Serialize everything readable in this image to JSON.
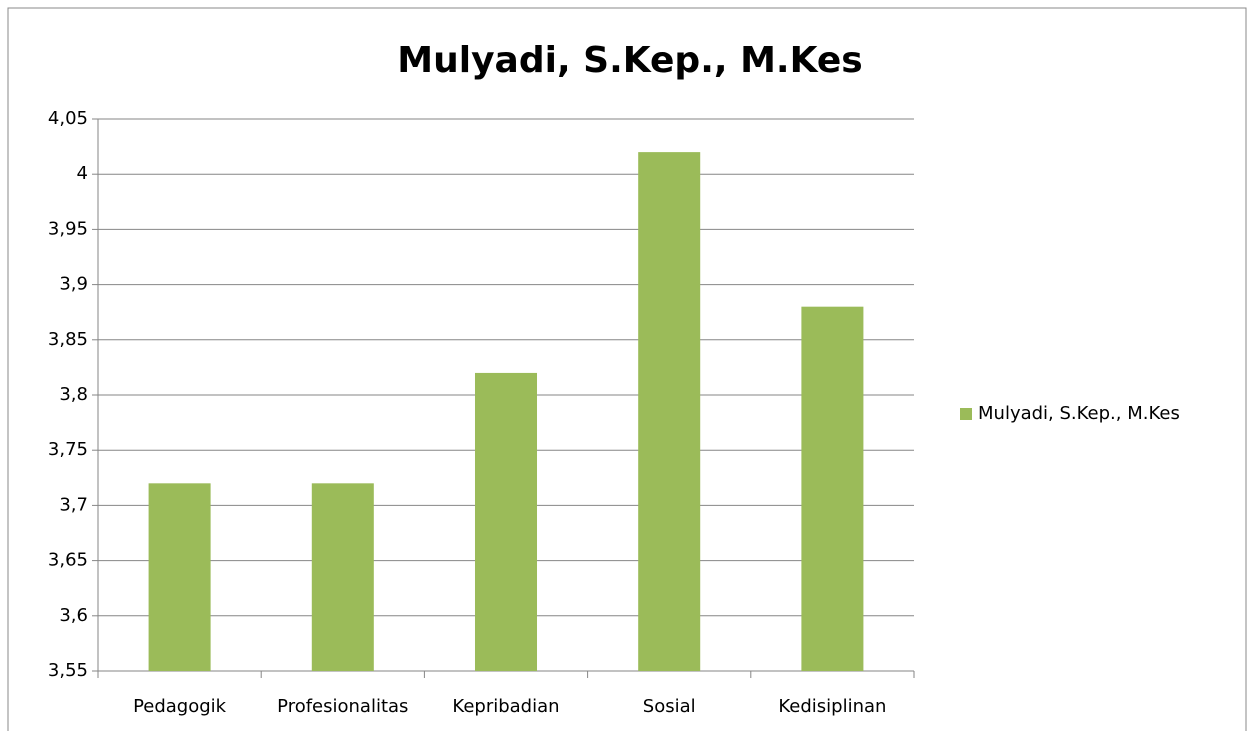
{
  "chart_data": {
    "type": "bar",
    "title": "Mulyadi, S.Kep., M.Kes",
    "categories": [
      "Pedagogik",
      "Profesionalitas",
      "Kepribadian",
      "Sosial",
      "Kedisiplinan"
    ],
    "series": [
      {
        "name": "Mulyadi, S.Kep., M.Kes",
        "color": "#9bbb59",
        "values": [
          3.72,
          3.72,
          3.82,
          4.02,
          3.88
        ]
      }
    ],
    "ylim": [
      3.55,
      4.05
    ],
    "yticks": [
      {
        "value": 3.55,
        "label": "3,55"
      },
      {
        "value": 3.6,
        "label": "3,6"
      },
      {
        "value": 3.65,
        "label": "3,65"
      },
      {
        "value": 3.7,
        "label": "3,7"
      },
      {
        "value": 3.75,
        "label": "3,75"
      },
      {
        "value": 3.8,
        "label": "3,8"
      },
      {
        "value": 3.85,
        "label": "3,85"
      },
      {
        "value": 3.9,
        "label": "3,9"
      },
      {
        "value": 3.95,
        "label": "3,95"
      },
      4,
      {
        "value": 4.05,
        "label": "4,05"
      }
    ],
    "grid": true,
    "legend": "right"
  }
}
